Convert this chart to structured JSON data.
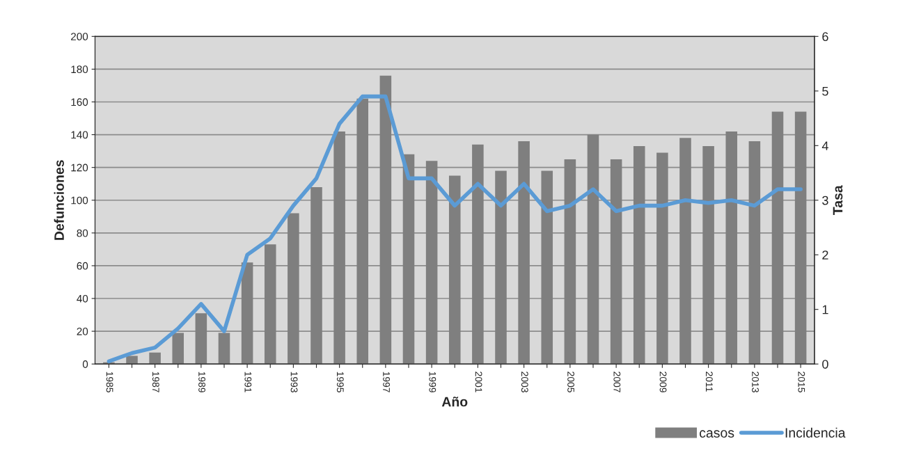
{
  "chart_data": {
    "type": "bar",
    "xlabel": "Año",
    "ylabel": "Defunciones",
    "y2label": "Tasa",
    "categories": [
      "1985",
      null,
      "1987",
      null,
      "1989",
      null,
      "1991",
      null,
      "1993",
      null,
      "1995",
      null,
      "1997",
      null,
      "1999",
      null,
      "2001",
      null,
      "2003",
      null,
      "2005",
      null,
      "2007",
      null,
      "2009",
      null,
      "2011",
      null,
      "2013",
      null,
      "2015"
    ],
    "series": [
      {
        "name": "casos",
        "color": "#7f7f7f",
        "values": [
          1,
          5,
          7,
          19,
          31,
          19,
          62,
          73,
          92,
          108,
          142,
          162,
          176,
          128,
          124,
          115,
          134,
          118,
          136,
          118,
          125,
          140,
          125,
          133,
          129,
          138,
          133,
          142,
          136,
          154,
          154
        ]
      },
      {
        "name": "Incidencia",
        "type": "line",
        "axis": "y2",
        "color": "#5b9bd5",
        "values": [
          0.05,
          0.2,
          0.3,
          0.65,
          1.1,
          0.6,
          2.0,
          2.3,
          2.9,
          3.4,
          4.4,
          4.9,
          4.9,
          3.4,
          3.4,
          2.9,
          3.3,
          2.9,
          3.3,
          2.8,
          2.9,
          3.2,
          2.8,
          2.9,
          2.9,
          3.0,
          2.95,
          3.0,
          2.9,
          3.2,
          3.2
        ]
      }
    ],
    "ylim": [
      0,
      200
    ],
    "yticks": [
      0,
      20,
      40,
      60,
      80,
      100,
      120,
      140,
      160,
      180,
      200
    ],
    "y2lim": [
      0,
      6
    ],
    "y2ticks": [
      0,
      1,
      2,
      3,
      4,
      5,
      6
    ],
    "grid": "y",
    "legend": "bottom right",
    "marker": "none",
    "line_style": "solid"
  }
}
